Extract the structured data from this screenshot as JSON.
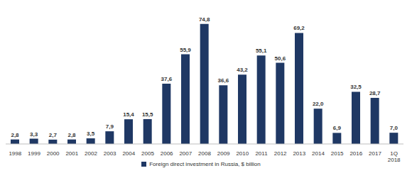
{
  "chart_data": {
    "type": "bar",
    "categories": [
      "1998",
      "1999",
      "2000",
      "2001",
      "2002",
      "2003",
      "2004",
      "2005",
      "2006",
      "2007",
      "2008",
      "2009",
      "2010",
      "2011",
      "2012",
      "2013",
      "2014",
      "2015",
      "2016",
      "2017",
      "1Q 2018"
    ],
    "series": [
      {
        "name": "Foreign direct investment in Russia, $ billion",
        "color": "#1f3864",
        "values": [
          2.8,
          3.3,
          2.7,
          2.8,
          3.5,
          7.9,
          15.4,
          15.5,
          37.6,
          55.9,
          74.8,
          36.6,
          43.2,
          55.1,
          50.6,
          69.2,
          22.0,
          6.9,
          32.5,
          28.7,
          7.0
        ],
        "value_labels": [
          "2,8",
          "3,3",
          "2,7",
          "2,8",
          "3,5",
          "7,9",
          "15,4",
          "15,5",
          "37,6",
          "55,9",
          "74,8",
          "36,6",
          "43,2",
          "55,1",
          "50,6",
          "69,2",
          "22,0",
          "6,9",
          "32,5",
          "28,7",
          "7,0"
        ]
      }
    ],
    "ylim": [
      0,
      80
    ],
    "data_labels": true,
    "tick_labels": "x",
    "legend": "bottom",
    "grid": false
  }
}
